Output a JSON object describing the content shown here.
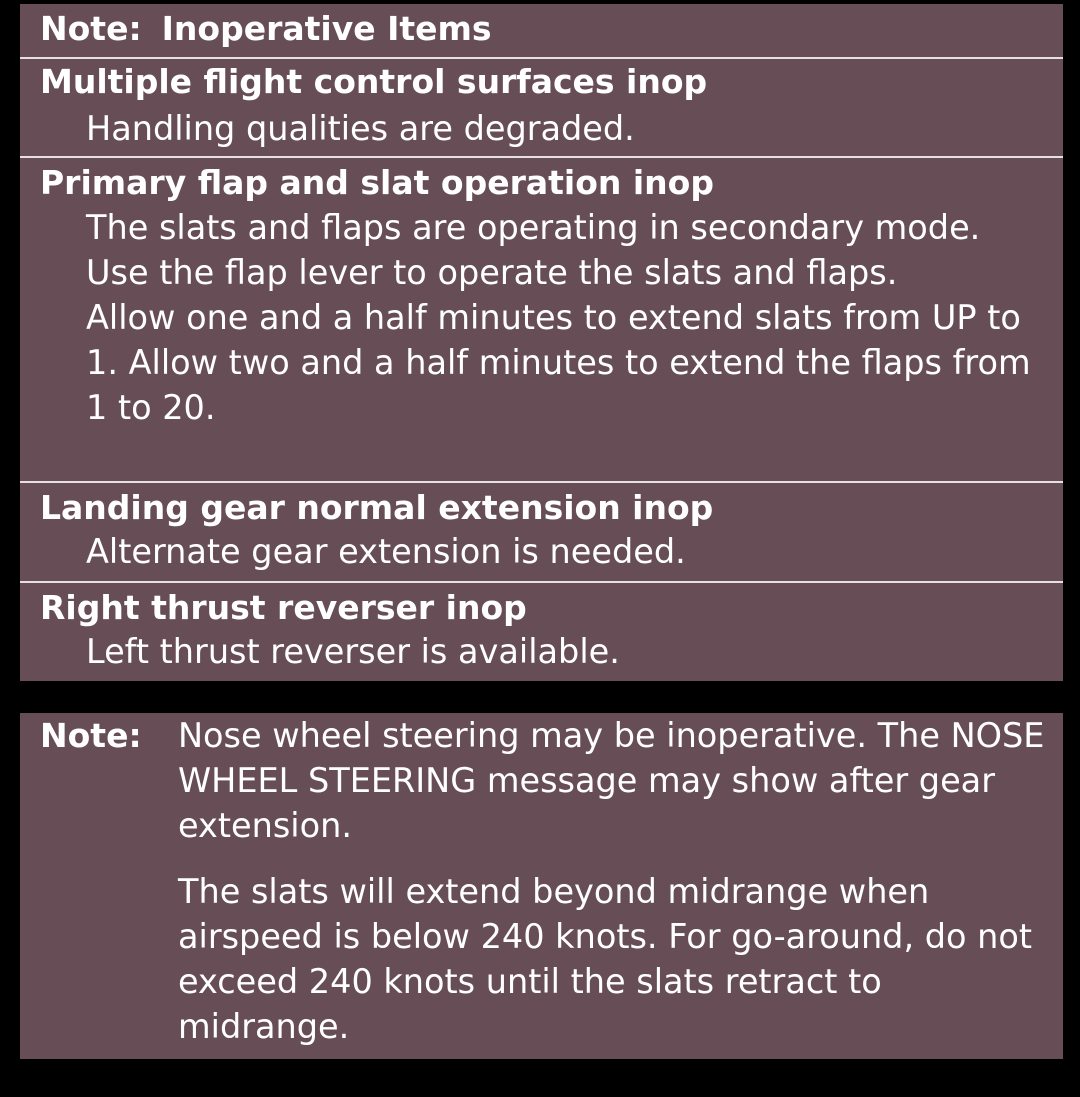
{
  "inoperative_note": {
    "heading_label": "Note:",
    "heading_title": "Inoperative Items",
    "items": [
      {
        "title": "Multiple flight control surfaces inop",
        "paragraphs": [
          "Handling qualities are degraded."
        ]
      },
      {
        "title": "Primary flap and slat operation inop",
        "paragraphs": [
          "The slats and flaps are operating in secondary mode. Use the flap lever to operate the slats and flaps.",
          "Allow one and a half minutes to extend slats from UP to 1. Allow two and a half minutes to extend the flaps from 1 to 20."
        ]
      },
      {
        "title": "Landing gear normal extension inop",
        "paragraphs": [
          "Alternate gear extension is needed."
        ]
      },
      {
        "title": "Right thrust reverser inop",
        "paragraphs": [
          "Left thrust reverser is available."
        ]
      }
    ]
  },
  "steering_note": {
    "label": "Note:",
    "paragraphs": [
      "Nose wheel steering may be inoperative. The NOSE WHEEL STEERING message may show after gear extension.",
      "The slats will extend beyond midrange when airspeed is below 240 knots. For go-around, do not exceed 240 knots until the slats retract to midrange."
    ]
  },
  "colors": {
    "page_background": "#000000",
    "panel_background": "#674e56",
    "text": "#ffffff",
    "divider": "#e6e0e2"
  }
}
